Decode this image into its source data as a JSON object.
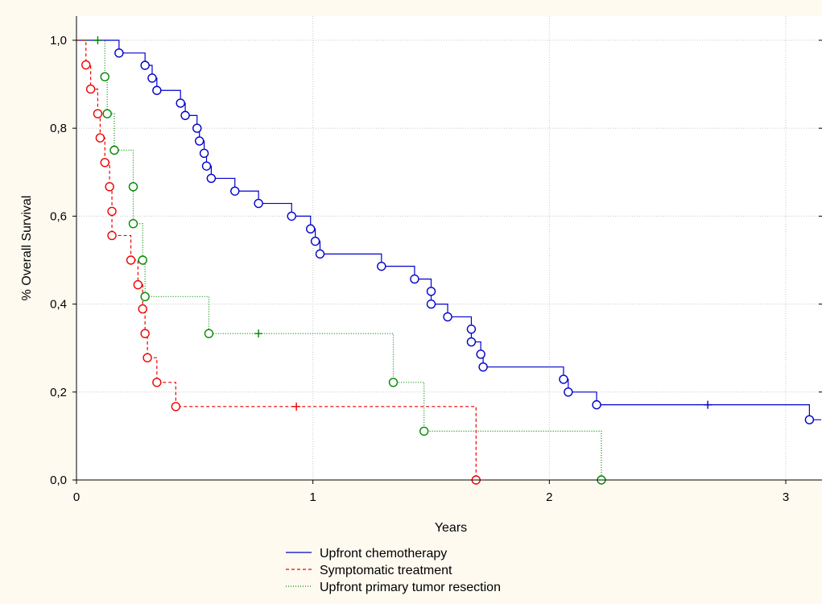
{
  "chart_data": {
    "type": "line",
    "subtype": "kaplan-meier",
    "title": "",
    "xlabel": "Years",
    "ylabel": "% Overall Survival",
    "xlim": [
      0,
      3.15
    ],
    "ylim": [
      0,
      1.05
    ],
    "x_ticks": [
      0,
      1,
      2,
      3
    ],
    "x_tick_labels": [
      "0",
      "1",
      "2",
      "3"
    ],
    "y_ticks": [
      0,
      0.2,
      0.4,
      0.6,
      0.8,
      1.0
    ],
    "y_tick_labels": [
      "0,0",
      "0,2",
      "0,4",
      "0,6",
      "0,8",
      "1,0"
    ],
    "grid": true,
    "legend_position": "bottom",
    "series": [
      {
        "name": "Upfront chemotherapy",
        "color": "#0000cc",
        "line_style": "solid",
        "steps": [
          [
            0,
            1.0
          ],
          [
            0.18,
            0.971
          ],
          [
            0.29,
            0.943
          ],
          [
            0.32,
            0.914
          ],
          [
            0.34,
            0.886
          ],
          [
            0.44,
            0.857
          ],
          [
            0.46,
            0.829
          ],
          [
            0.51,
            0.8
          ],
          [
            0.52,
            0.771
          ],
          [
            0.54,
            0.743
          ],
          [
            0.55,
            0.714
          ],
          [
            0.57,
            0.686
          ],
          [
            0.67,
            0.657
          ],
          [
            0.77,
            0.629
          ],
          [
            0.91,
            0.6
          ],
          [
            0.99,
            0.571
          ],
          [
            1.01,
            0.543
          ],
          [
            1.03,
            0.514
          ],
          [
            1.29,
            0.486
          ],
          [
            1.43,
            0.457
          ],
          [
            1.5,
            0.429
          ],
          [
            1.5,
            0.4
          ],
          [
            1.57,
            0.371
          ],
          [
            1.67,
            0.343
          ],
          [
            1.67,
            0.314
          ],
          [
            1.71,
            0.286
          ],
          [
            1.72,
            0.257
          ],
          [
            2.06,
            0.229
          ],
          [
            2.08,
            0.2
          ],
          [
            2.2,
            0.171
          ],
          [
            3.1,
            0.137
          ]
        ],
        "x_end": 3.15,
        "events": [
          [
            0.18,
            0.971
          ],
          [
            0.29,
            0.943
          ],
          [
            0.32,
            0.914
          ],
          [
            0.34,
            0.886
          ],
          [
            0.44,
            0.857
          ],
          [
            0.46,
            0.829
          ],
          [
            0.51,
            0.8
          ],
          [
            0.52,
            0.771
          ],
          [
            0.54,
            0.743
          ],
          [
            0.55,
            0.714
          ],
          [
            0.57,
            0.686
          ],
          [
            0.67,
            0.657
          ],
          [
            0.77,
            0.629
          ],
          [
            0.91,
            0.6
          ],
          [
            0.99,
            0.571
          ],
          [
            1.01,
            0.543
          ],
          [
            1.03,
            0.514
          ],
          [
            1.29,
            0.486
          ],
          [
            1.43,
            0.457
          ],
          [
            1.5,
            0.429
          ],
          [
            1.5,
            0.4
          ],
          [
            1.57,
            0.371
          ],
          [
            1.67,
            0.343
          ],
          [
            1.67,
            0.314
          ],
          [
            1.71,
            0.286
          ],
          [
            1.72,
            0.257
          ],
          [
            2.06,
            0.229
          ],
          [
            2.08,
            0.2
          ],
          [
            2.2,
            0.171
          ],
          [
            3.1,
            0.137
          ]
        ],
        "censored": [
          [
            2.67,
            0.171
          ]
        ]
      },
      {
        "name": "Symptomatic treatment",
        "color": "#ee0000",
        "line_style": "dashed",
        "steps": [
          [
            0,
            1.0
          ],
          [
            0.04,
            0.944
          ],
          [
            0.06,
            0.889
          ],
          [
            0.09,
            0.833
          ],
          [
            0.1,
            0.778
          ],
          [
            0.12,
            0.722
          ],
          [
            0.14,
            0.667
          ],
          [
            0.15,
            0.611
          ],
          [
            0.15,
            0.556
          ],
          [
            0.23,
            0.5
          ],
          [
            0.26,
            0.444
          ],
          [
            0.28,
            0.389
          ],
          [
            0.29,
            0.333
          ],
          [
            0.3,
            0.278
          ],
          [
            0.34,
            0.222
          ],
          [
            0.42,
            0.167
          ],
          [
            1.69,
            0.0
          ]
        ],
        "x_end": 1.69,
        "events": [
          [
            0.04,
            0.944
          ],
          [
            0.06,
            0.889
          ],
          [
            0.09,
            0.833
          ],
          [
            0.1,
            0.778
          ],
          [
            0.12,
            0.722
          ],
          [
            0.14,
            0.667
          ],
          [
            0.15,
            0.611
          ],
          [
            0.15,
            0.556
          ],
          [
            0.23,
            0.5
          ],
          [
            0.26,
            0.444
          ],
          [
            0.28,
            0.389
          ],
          [
            0.29,
            0.333
          ],
          [
            0.3,
            0.278
          ],
          [
            0.34,
            0.222
          ],
          [
            0.42,
            0.167
          ],
          [
            1.69,
            0.0
          ]
        ],
        "censored": [
          [
            0.93,
            0.167
          ]
        ]
      },
      {
        "name": "Upfront primary tumor resection",
        "color": "#008800",
        "line_style": "dotted",
        "steps": [
          [
            0,
            1.0
          ],
          [
            0.12,
            0.917
          ],
          [
            0.13,
            0.833
          ],
          [
            0.16,
            0.75
          ],
          [
            0.24,
            0.667
          ],
          [
            0.24,
            0.583
          ],
          [
            0.28,
            0.5
          ],
          [
            0.29,
            0.417
          ],
          [
            0.56,
            0.333
          ],
          [
            1.34,
            0.222
          ],
          [
            1.47,
            0.111
          ],
          [
            2.22,
            0.0
          ]
        ],
        "x_end": 2.22,
        "events": [
          [
            0.12,
            0.917
          ],
          [
            0.13,
            0.833
          ],
          [
            0.16,
            0.75
          ],
          [
            0.24,
            0.667
          ],
          [
            0.24,
            0.583
          ],
          [
            0.28,
            0.5
          ],
          [
            0.29,
            0.417
          ],
          [
            0.56,
            0.333
          ],
          [
            1.34,
            0.222
          ],
          [
            1.47,
            0.111
          ],
          [
            2.22,
            0.0
          ]
        ],
        "censored": [
          [
            0.09,
            1.0
          ],
          [
            0.77,
            0.333
          ]
        ]
      }
    ]
  }
}
